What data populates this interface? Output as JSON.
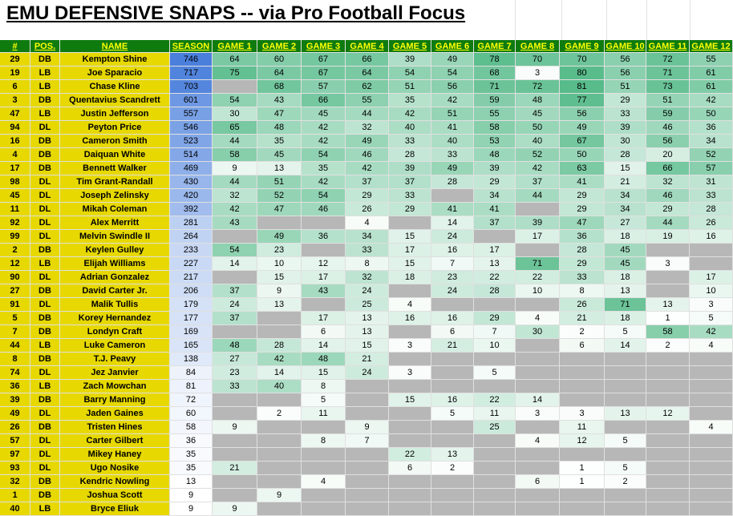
{
  "title": "EMU DEFENSIVE SNAPS -- via Pro Football Focus",
  "colors": {
    "header_bg": "#0f7b0f",
    "header_text": "#ffff00",
    "player_info_bg": "#e6d800",
    "season_high": "#4a7fdc",
    "season_low": "#ffffff",
    "game_high": "#57bb8a",
    "game_low": "#ffffff",
    "no_game": "#b7b7b7"
  },
  "columns": [
    "#",
    "POS.",
    "NAME",
    "SEASON",
    "GAME 1",
    "GAME 2",
    "GAME 3",
    "GAME 4",
    "GAME 5",
    "GAME 6",
    "GAME 7",
    "GAME 8",
    "GAME 9",
    "GAME 10",
    "GAME 11",
    "GAME 12"
  ],
  "rows": [
    {
      "num": "29",
      "pos": "DB",
      "name": "Kempton Shine",
      "season": 746,
      "games": [
        64,
        60,
        67,
        66,
        39,
        49,
        78,
        70,
        70,
        56,
        72,
        55
      ]
    },
    {
      "num": "19",
      "pos": "LB",
      "name": "Joe Sparacio",
      "season": 717,
      "games": [
        75,
        64,
        67,
        64,
        54,
        54,
        68,
        3,
        80,
        56,
        71,
        61
      ]
    },
    {
      "num": "6",
      "pos": "LB",
      "name": "Chase Kline",
      "season": 703,
      "games": [
        null,
        68,
        57,
        62,
        51,
        56,
        71,
        72,
        81,
        51,
        73,
        61
      ]
    },
    {
      "num": "3",
      "pos": "DB",
      "name": "Quentavius Scandrett",
      "season": 601,
      "games": [
        54,
        43,
        66,
        55,
        35,
        42,
        59,
        48,
        77,
        29,
        51,
        42
      ]
    },
    {
      "num": "47",
      "pos": "LB",
      "name": "Justin Jefferson",
      "season": 557,
      "games": [
        30,
        47,
        45,
        44,
        42,
        51,
        55,
        45,
        56,
        33,
        59,
        50
      ]
    },
    {
      "num": "94",
      "pos": "DL",
      "name": "Peyton Price",
      "season": 546,
      "games": [
        65,
        48,
        42,
        32,
        40,
        41,
        58,
        50,
        49,
        39,
        46,
        36
      ]
    },
    {
      "num": "16",
      "pos": "DB",
      "name": "Cameron Smith",
      "season": 523,
      "games": [
        44,
        35,
        42,
        49,
        33,
        40,
        53,
        40,
        67,
        30,
        56,
        34
      ]
    },
    {
      "num": "4",
      "pos": "DB",
      "name": "Daiquan White",
      "season": 514,
      "games": [
        58,
        45,
        54,
        46,
        28,
        33,
        48,
        52,
        50,
        28,
        20,
        52
      ]
    },
    {
      "num": "17",
      "pos": "DB",
      "name": "Bennett Walker",
      "season": 469,
      "games": [
        9,
        13,
        35,
        42,
        39,
        49,
        39,
        42,
        63,
        15,
        66,
        57
      ]
    },
    {
      "num": "98",
      "pos": "DL",
      "name": "Tim Grant-Randall",
      "season": 430,
      "games": [
        44,
        51,
        42,
        37,
        37,
        28,
        29,
        37,
        41,
        21,
        32,
        31
      ]
    },
    {
      "num": "45",
      "pos": "DL",
      "name": "Joseph Zelinsky",
      "season": 420,
      "games": [
        32,
        52,
        54,
        29,
        33,
        null,
        34,
        44,
        29,
        34,
        46,
        33
      ]
    },
    {
      "num": "11",
      "pos": "DL",
      "name": "Mikah Coleman",
      "season": 392,
      "games": [
        42,
        47,
        46,
        26,
        29,
        41,
        41,
        null,
        29,
        34,
        29,
        28
      ]
    },
    {
      "num": "92",
      "pos": "DL",
      "name": "Alex Merritt",
      "season": 281,
      "games": [
        43,
        null,
        null,
        4,
        null,
        14,
        37,
        39,
        47,
        27,
        44,
        26
      ]
    },
    {
      "num": "99",
      "pos": "DL",
      "name": "Melvin Swindle II",
      "season": 264,
      "games": [
        null,
        49,
        36,
        34,
        15,
        24,
        null,
        17,
        36,
        18,
        19,
        16
      ]
    },
    {
      "num": "2",
      "pos": "DB",
      "name": "Keylen Gulley",
      "season": 233,
      "games": [
        54,
        23,
        null,
        33,
        17,
        16,
        17,
        null,
        28,
        45,
        null,
        null
      ]
    },
    {
      "num": "12",
      "pos": "LB",
      "name": "Elijah Williams",
      "season": 227,
      "games": [
        14,
        10,
        12,
        8,
        15,
        7,
        13,
        71,
        29,
        45,
        3,
        null
      ]
    },
    {
      "num": "90",
      "pos": "DL",
      "name": "Adrian Gonzalez",
      "season": 217,
      "games": [
        null,
        15,
        17,
        32,
        18,
        23,
        22,
        22,
        33,
        18,
        null,
        17
      ]
    },
    {
      "num": "27",
      "pos": "DB",
      "name": "David Carter Jr.",
      "season": 206,
      "games": [
        37,
        9,
        43,
        24,
        null,
        24,
        28,
        10,
        8,
        13,
        null,
        10
      ]
    },
    {
      "num": "91",
      "pos": "DL",
      "name": "Malik Tullis",
      "season": 179,
      "games": [
        24,
        13,
        null,
        25,
        4,
        null,
        null,
        null,
        26,
        71,
        13,
        3
      ]
    },
    {
      "num": "5",
      "pos": "DB",
      "name": "Korey Hernandez",
      "season": 177,
      "games": [
        37,
        null,
        17,
        13,
        16,
        16,
        29,
        4,
        21,
        18,
        1,
        5
      ]
    },
    {
      "num": "7",
      "pos": "DB",
      "name": "Londyn Craft",
      "season": 169,
      "games": [
        null,
        null,
        6,
        13,
        null,
        6,
        7,
        30,
        2,
        5,
        58,
        42
      ]
    },
    {
      "num": "44",
      "pos": "LB",
      "name": "Luke Cameron",
      "season": 165,
      "games": [
        48,
        28,
        14,
        15,
        3,
        21,
        10,
        null,
        6,
        14,
        2,
        4
      ]
    },
    {
      "num": "8",
      "pos": "DB",
      "name": "T.J. Peavy",
      "season": 138,
      "games": [
        27,
        42,
        48,
        21,
        null,
        null,
        null,
        null,
        null,
        null,
        null,
        null
      ]
    },
    {
      "num": "74",
      "pos": "DL",
      "name": "Jez Janvier",
      "season": 84,
      "games": [
        23,
        14,
        15,
        24,
        3,
        null,
        5,
        null,
        null,
        null,
        null,
        null
      ]
    },
    {
      "num": "36",
      "pos": "LB",
      "name": "Zach Mowchan",
      "season": 81,
      "games": [
        33,
        40,
        8,
        null,
        null,
        null,
        null,
        null,
        null,
        null,
        null,
        null
      ]
    },
    {
      "num": "39",
      "pos": "DB",
      "name": "Barry Manning",
      "season": 72,
      "games": [
        null,
        null,
        5,
        null,
        15,
        16,
        22,
        14,
        null,
        null,
        null,
        null
      ]
    },
    {
      "num": "49",
      "pos": "DL",
      "name": "Jaden Gaines",
      "season": 60,
      "games": [
        null,
        2,
        11,
        null,
        null,
        5,
        11,
        3,
        3,
        13,
        12,
        null
      ]
    },
    {
      "num": "26",
      "pos": "DB",
      "name": "Tristen Hines",
      "season": 58,
      "games": [
        9,
        null,
        null,
        9,
        null,
        null,
        25,
        null,
        11,
        null,
        null,
        4
      ]
    },
    {
      "num": "57",
      "pos": "DL",
      "name": "Carter Gilbert",
      "season": 36,
      "games": [
        null,
        null,
        8,
        7,
        null,
        null,
        null,
        4,
        12,
        5,
        null,
        null
      ]
    },
    {
      "num": "97",
      "pos": "DL",
      "name": "Mikey Haney",
      "season": 35,
      "games": [
        null,
        null,
        null,
        null,
        22,
        13,
        null,
        null,
        null,
        null,
        null,
        null
      ]
    },
    {
      "num": "93",
      "pos": "DL",
      "name": "Ugo Nosike",
      "season": 35,
      "games": [
        21,
        null,
        null,
        null,
        6,
        2,
        null,
        null,
        1,
        5,
        null,
        null
      ]
    },
    {
      "num": "32",
      "pos": "DB",
      "name": "Kendric Nowling",
      "season": 13,
      "games": [
        null,
        null,
        4,
        null,
        null,
        null,
        null,
        6,
        1,
        2,
        null,
        null
      ]
    },
    {
      "num": "1",
      "pos": "DB",
      "name": "Joshua Scott",
      "season": 9,
      "games": [
        null,
        9,
        null,
        null,
        null,
        null,
        null,
        null,
        null,
        null,
        null,
        null
      ]
    },
    {
      "num": "40",
      "pos": "LB",
      "name": "Bryce Eliuk",
      "season": 9,
      "games": [
        9,
        null,
        null,
        null,
        null,
        null,
        null,
        null,
        null,
        null,
        null,
        null
      ]
    }
  ]
}
